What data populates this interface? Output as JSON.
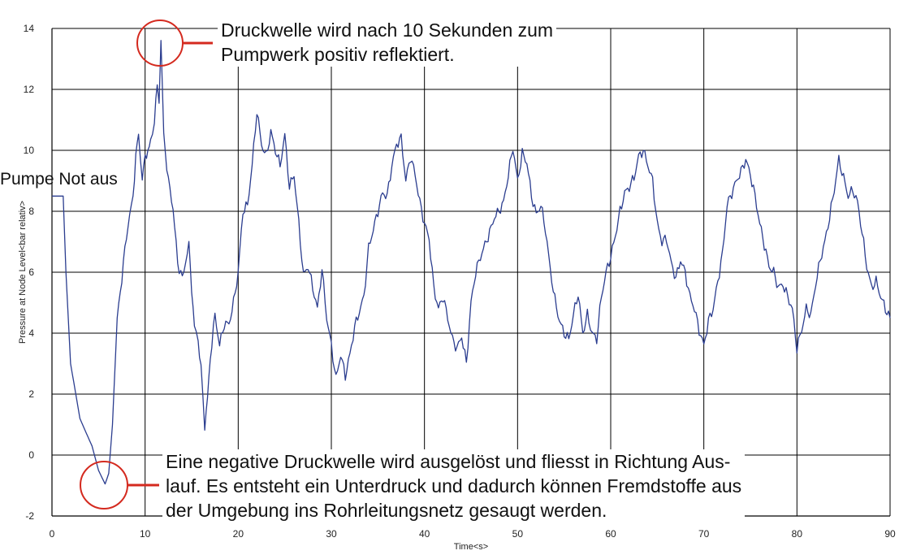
{
  "chart_data": {
    "type": "line",
    "xlabel": "Time<s>",
    "ylabel": "Pressure at Node Level<bar relativ>",
    "xlim": [
      0,
      90
    ],
    "ylim": [
      -2,
      14
    ],
    "xticks": [
      0,
      10,
      20,
      30,
      40,
      50,
      60,
      70,
      80,
      90
    ],
    "yticks": [
      -2,
      0,
      2,
      4,
      6,
      8,
      10,
      12,
      14
    ],
    "grid": true,
    "series": [
      {
        "color": "#2b3d8f",
        "x": [
          0,
          1.2,
          1.5,
          2,
          3,
          4,
          4.3,
          5,
          5.7,
          6.1,
          6.5,
          7,
          7.5,
          8,
          8.7,
          9,
          9.3,
          9.7,
          10,
          10.6,
          11,
          11.3,
          11.5,
          11.7,
          12,
          12.5,
          13,
          13.5,
          14,
          14.7,
          15,
          15.3,
          15.7,
          16,
          16.4,
          16.7,
          17,
          17.5,
          18,
          18.5,
          19,
          19.5,
          20,
          20.5,
          21,
          21.5,
          22,
          22.5,
          23,
          23.5,
          24,
          24.5,
          25,
          25.5,
          26,
          26.5,
          27,
          27.5,
          28,
          28.5,
          29,
          29.5,
          30,
          30.5,
          31,
          31.5,
          32,
          32.5,
          33,
          33.5,
          34,
          34.5,
          35,
          35.5,
          36,
          36.5,
          37,
          37.5,
          38,
          38.5,
          39,
          39.5,
          40,
          40.5,
          41,
          41.5,
          42,
          42.5,
          43,
          43.5,
          44,
          44.5,
          45,
          45.5,
          46,
          46.5,
          47,
          47.5,
          48,
          48.5,
          49,
          49.5,
          50,
          50.5,
          51,
          51.5,
          52,
          52.5,
          53,
          53.5,
          54,
          54.5,
          55,
          55.5,
          56,
          56.5,
          57,
          57.5,
          58,
          58.5,
          59,
          59.5,
          60,
          60.5,
          61,
          61.5,
          62,
          62.5,
          63,
          63.5,
          64,
          64.5,
          65,
          65.5,
          66,
          66.5,
          67,
          67.5,
          68,
          68.5,
          69,
          69.5,
          70,
          70.5,
          71,
          71.5,
          72,
          72.5,
          73,
          73.5,
          74,
          74.5,
          75,
          75.5,
          76,
          76.5,
          77,
          77.5,
          78,
          78.5,
          79,
          79.5,
          80,
          80.5,
          81,
          81.5,
          82,
          82.5,
          83,
          83.5,
          84,
          84.5,
          85,
          85.5,
          86,
          86.5,
          87,
          87.5,
          88,
          88.5,
          89,
          89.5,
          90
        ],
        "y": [
          8.5,
          8.5,
          6.0,
          3.0,
          1.2,
          0.5,
          0.3,
          -0.5,
          -0.95,
          -0.6,
          1.0,
          4.5,
          5.8,
          7.2,
          8.5,
          9.8,
          10.5,
          9.0,
          9.8,
          10.2,
          11.0,
          12.1,
          11.7,
          13.6,
          10.5,
          9.0,
          8.1,
          6.3,
          5.8,
          6.9,
          5.5,
          4.2,
          3.8,
          2.8,
          1.0,
          1.8,
          3.2,
          4.6,
          3.6,
          4.3,
          4.3,
          5.0,
          6.0,
          8.0,
          8.2,
          9.5,
          11.3,
          10.2,
          9.8,
          10.6,
          10.0,
          9.5,
          10.5,
          8.8,
          9.2,
          7.6,
          5.9,
          6.2,
          5.5,
          4.8,
          6.1,
          4.5,
          3.6,
          2.5,
          3.3,
          2.6,
          3.3,
          4.2,
          4.7,
          5.2,
          6.8,
          7.4,
          8.0,
          8.6,
          8.5,
          9.5,
          10.2,
          10.4,
          9.0,
          9.8,
          9.2,
          8.3,
          7.6,
          7.1,
          5.5,
          4.8,
          5.2,
          4.5,
          3.8,
          3.5,
          3.9,
          3.0,
          5.0,
          6.0,
          6.5,
          6.9,
          7.3,
          7.8,
          8.0,
          8.3,
          9.2,
          10.1,
          9.0,
          9.9,
          9.6,
          8.5,
          7.9,
          8.2,
          7.4,
          6.1,
          5.1,
          4.4,
          4.0,
          3.8,
          4.6,
          5.3,
          4.0,
          4.6,
          4.0,
          3.8,
          5.2,
          6.0,
          6.5,
          7.2,
          8.0,
          8.6,
          8.8,
          9.1,
          9.8,
          10.0,
          9.5,
          9.0,
          7.6,
          7.0,
          7.1,
          6.3,
          5.8,
          6.4,
          6.0,
          5.2,
          4.8,
          4.1,
          3.6,
          4.4,
          4.8,
          5.7,
          6.6,
          8.2,
          8.6,
          9.0,
          9.3,
          9.7,
          9.2,
          8.5,
          7.6,
          6.9,
          6.2,
          6.0,
          5.5,
          5.6,
          5.2,
          4.8,
          3.5,
          4.1,
          4.8,
          4.6,
          5.6,
          6.4,
          7.0,
          7.8,
          8.7,
          9.7,
          9.1,
          8.5,
          8.7,
          8.3,
          7.3,
          6.2,
          5.5,
          5.7,
          5.2,
          4.8,
          4.5
        ]
      }
    ]
  },
  "annotations": {
    "top": "Druckwelle wird nach 10 Sekunden zum\nPumpwerk positiv reflektiert.",
    "bottom": "Eine negative Druckwelle wird ausgelöst und fliesst in Richtung Aus-\nlauf. Es entsteht ein Unterdruck und dadurch können Fremdstoffe aus\nder Umgebung ins Rohrleitungsnetz gesaugt werden.",
    "left": "Pumpe Not aus"
  },
  "colors": {
    "line": "#2b3d8f",
    "highlight": "#d42a1f",
    "grid": "#000000"
  }
}
